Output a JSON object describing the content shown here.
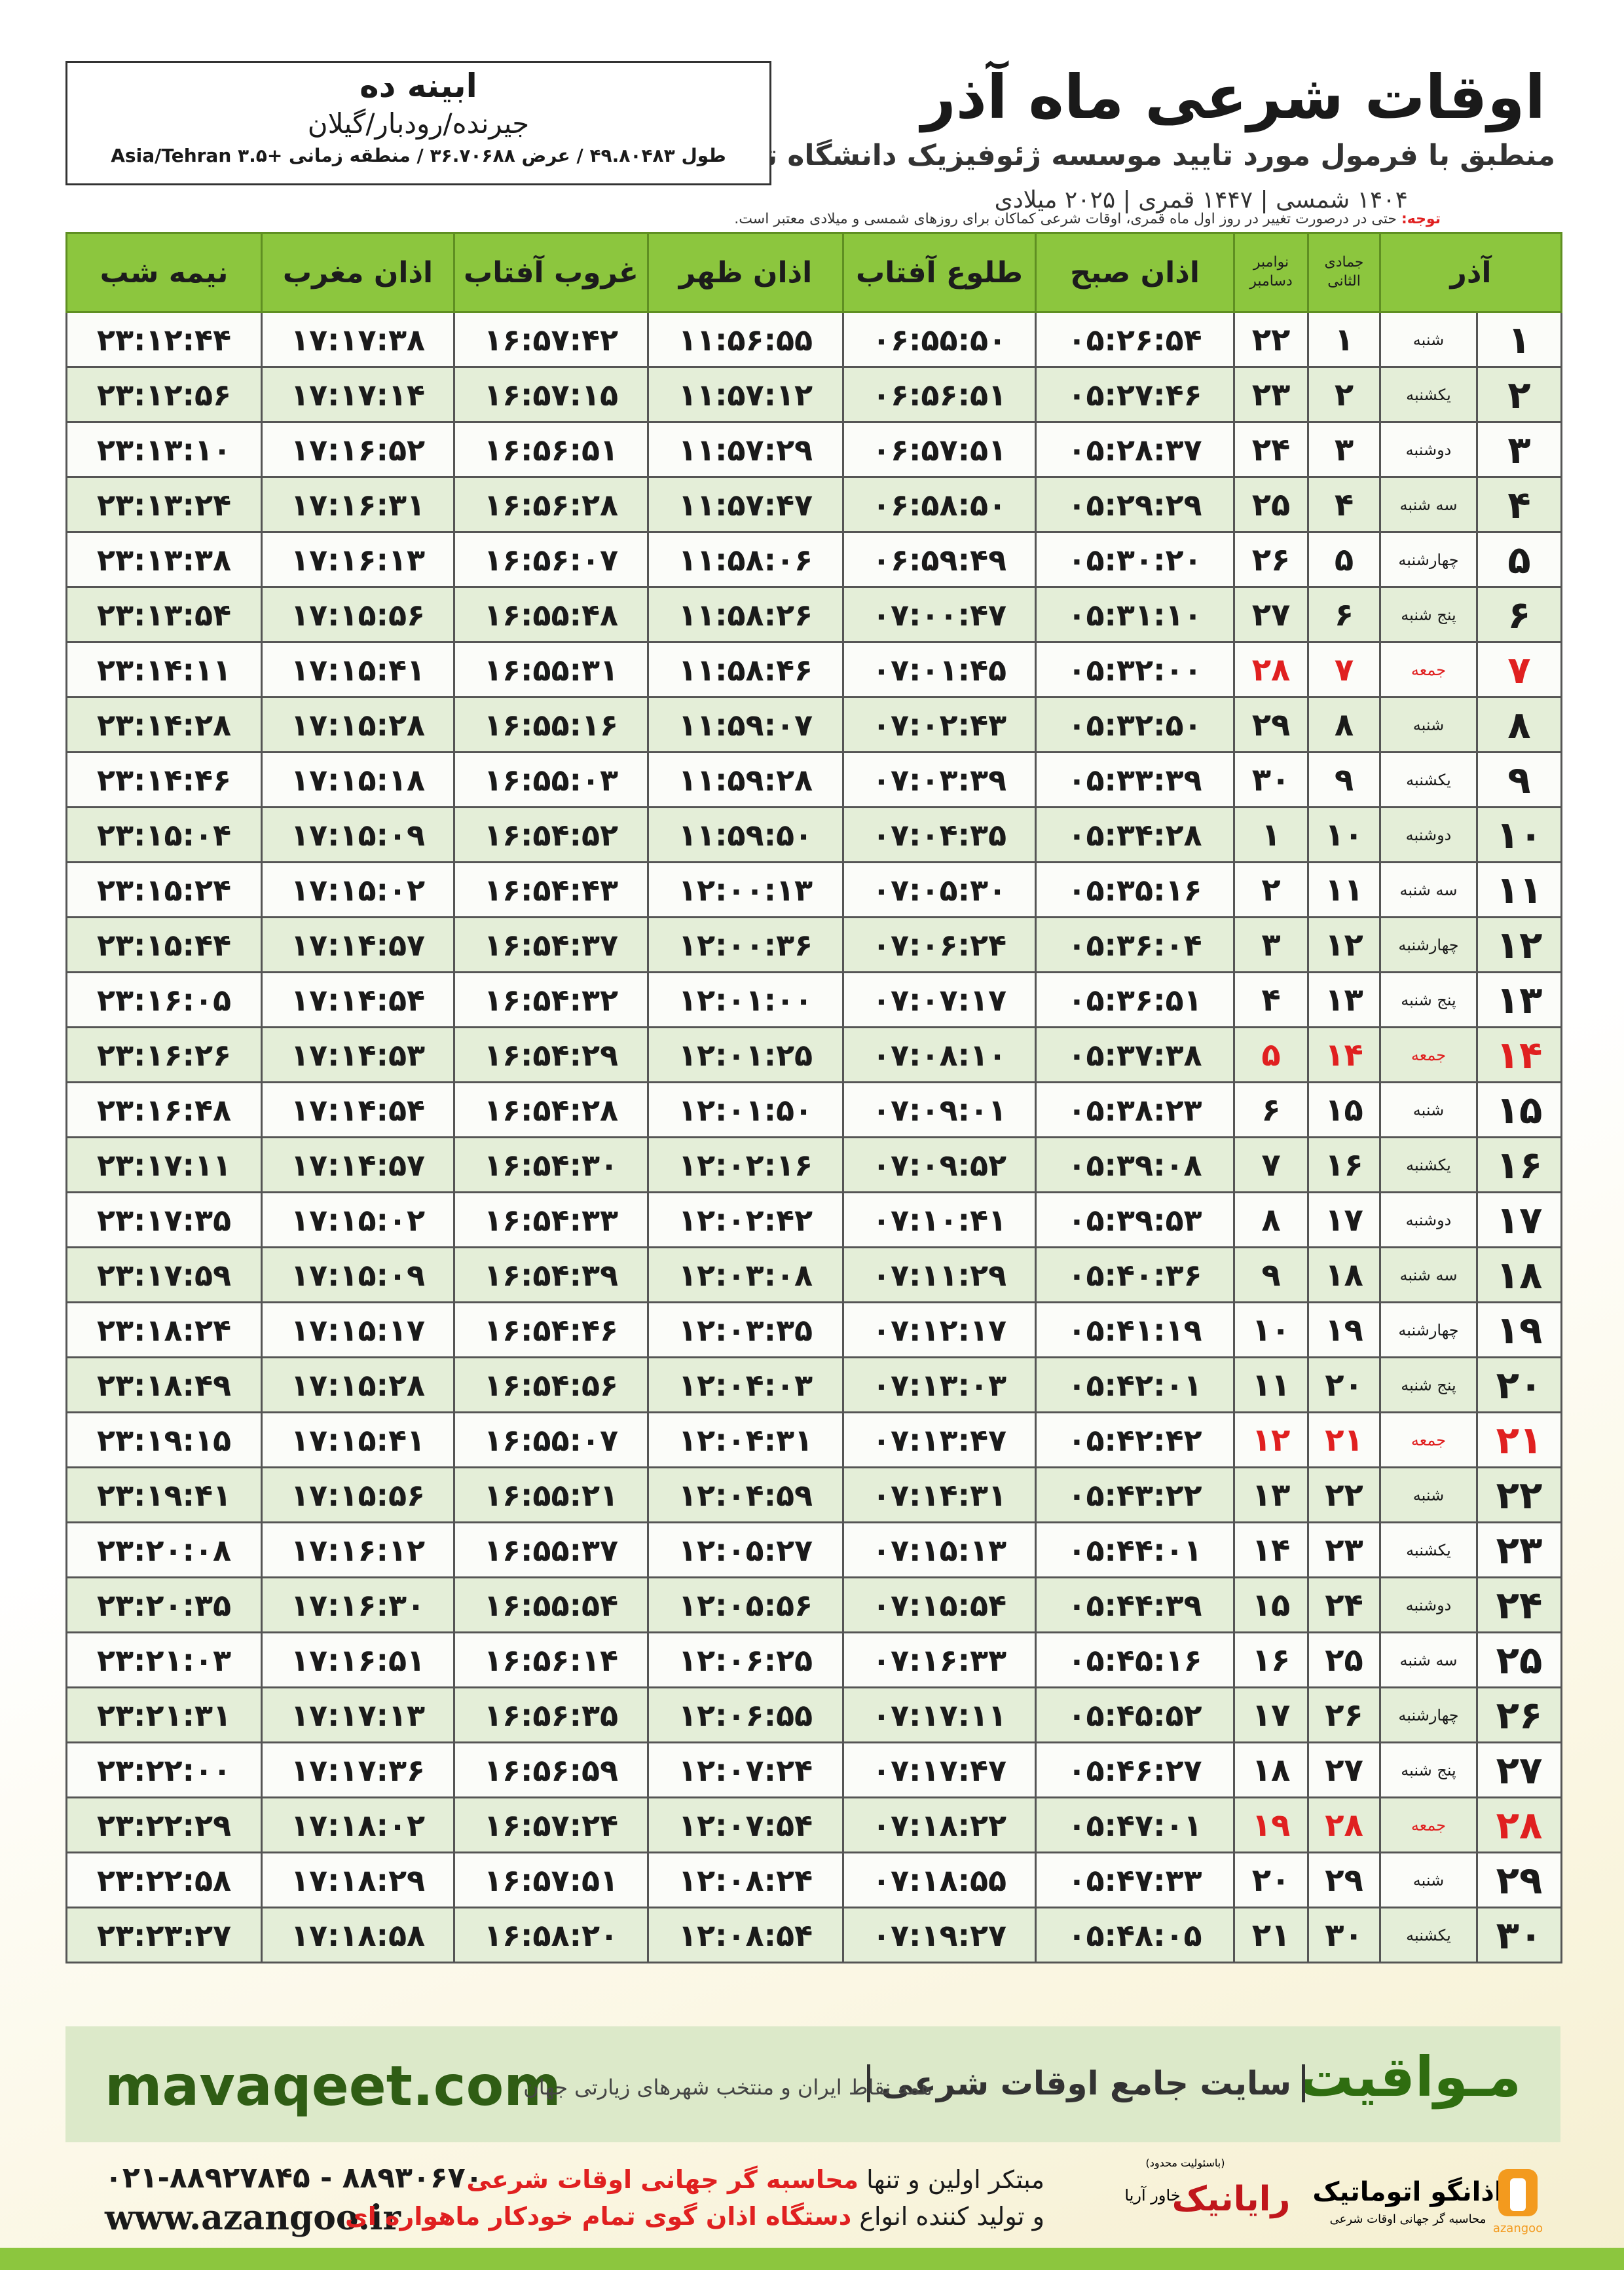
{
  "header": {
    "title": "اوقات شرعی ماه آذر",
    "subtitle": "منطبق با فرمول مورد تایید موسسه ژئوفیزیک دانشگاه تهران",
    "dates": "۱۴۰۴ شمسی | ۱۴۴۷ قمری | ۲۰۲۵ میلادی"
  },
  "location": {
    "name": "ابینه ده",
    "region": "جیرنده/رودبار/گیلان",
    "coords": "طول ۴۹.۸۰۴۸۳ / عرض ۳۶.۷۰۶۸۸ / منطقه زمانی +۳.۵ Asia/Tehran"
  },
  "note": {
    "label": "توجه:",
    "text": "حتی در درصورت تغییر در روز اول ماه قمری، اوقات شرعی کماکان برای روزهای شمسی و میلادی معتبر است."
  },
  "table": {
    "month": "آذر",
    "hijri_month": "جمادی الثانی",
    "greg_months": [
      "نوامبر",
      "دسامبر"
    ],
    "columns": [
      "اذان صبح",
      "طلوع آفتاب",
      "اذان ظهر",
      "غروب آفتاب",
      "اذان مغرب",
      "نیمه شب"
    ],
    "rows": [
      [
        "۱",
        "شنبه",
        "۱",
        "۲۲",
        "۰۵:۲۶:۵۴",
        "۰۶:۵۵:۵۰",
        "۱۱:۵۶:۵۵",
        "۱۶:۵۷:۴۲",
        "۱۷:۱۷:۳۸",
        "۲۳:۱۲:۴۴"
      ],
      [
        "۲",
        "یکشنبه",
        "۲",
        "۲۳",
        "۰۵:۲۷:۴۶",
        "۰۶:۵۶:۵۱",
        "۱۱:۵۷:۱۲",
        "۱۶:۵۷:۱۵",
        "۱۷:۱۷:۱۴",
        "۲۳:۱۲:۵۶"
      ],
      [
        "۳",
        "دوشنبه",
        "۳",
        "۲۴",
        "۰۵:۲۸:۳۷",
        "۰۶:۵۷:۵۱",
        "۱۱:۵۷:۲۹",
        "۱۶:۵۶:۵۱",
        "۱۷:۱۶:۵۲",
        "۲۳:۱۳:۱۰"
      ],
      [
        "۴",
        "سه شنبه",
        "۴",
        "۲۵",
        "۰۵:۲۹:۲۹",
        "۰۶:۵۸:۵۰",
        "۱۱:۵۷:۴۷",
        "۱۶:۵۶:۲۸",
        "۱۷:۱۶:۳۱",
        "۲۳:۱۳:۲۴"
      ],
      [
        "۵",
        "چهارشنبه",
        "۵",
        "۲۶",
        "۰۵:۳۰:۲۰",
        "۰۶:۵۹:۴۹",
        "۱۱:۵۸:۰۶",
        "۱۶:۵۶:۰۷",
        "۱۷:۱۶:۱۳",
        "۲۳:۱۳:۳۸"
      ],
      [
        "۶",
        "پنج شنبه",
        "۶",
        "۲۷",
        "۰۵:۳۱:۱۰",
        "۰۷:۰۰:۴۷",
        "۱۱:۵۸:۲۶",
        "۱۶:۵۵:۴۸",
        "۱۷:۱۵:۵۶",
        "۲۳:۱۳:۵۴"
      ],
      [
        "۷",
        "جمعه",
        "۷",
        "۲۸",
        "۰۵:۳۲:۰۰",
        "۰۷:۰۱:۴۵",
        "۱۱:۵۸:۴۶",
        "۱۶:۵۵:۳۱",
        "۱۷:۱۵:۴۱",
        "۲۳:۱۴:۱۱"
      ],
      [
        "۸",
        "شنبه",
        "۸",
        "۲۹",
        "۰۵:۳۲:۵۰",
        "۰۷:۰۲:۴۳",
        "۱۱:۵۹:۰۷",
        "۱۶:۵۵:۱۶",
        "۱۷:۱۵:۲۸",
        "۲۳:۱۴:۲۸"
      ],
      [
        "۹",
        "یکشنبه",
        "۹",
        "۳۰",
        "۰۵:۳۳:۳۹",
        "۰۷:۰۳:۳۹",
        "۱۱:۵۹:۲۸",
        "۱۶:۵۵:۰۳",
        "۱۷:۱۵:۱۸",
        "۲۳:۱۴:۴۶"
      ],
      [
        "۱۰",
        "دوشنبه",
        "۱۰",
        "۱",
        "۰۵:۳۴:۲۸",
        "۰۷:۰۴:۳۵",
        "۱۱:۵۹:۵۰",
        "۱۶:۵۴:۵۲",
        "۱۷:۱۵:۰۹",
        "۲۳:۱۵:۰۴"
      ],
      [
        "۱۱",
        "سه شنبه",
        "۱۱",
        "۲",
        "۰۵:۳۵:۱۶",
        "۰۷:۰۵:۳۰",
        "۱۲:۰۰:۱۳",
        "۱۶:۵۴:۴۳",
        "۱۷:۱۵:۰۲",
        "۲۳:۱۵:۲۴"
      ],
      [
        "۱۲",
        "چهارشنبه",
        "۱۲",
        "۳",
        "۰۵:۳۶:۰۴",
        "۰۷:۰۶:۲۴",
        "۱۲:۰۰:۳۶",
        "۱۶:۵۴:۳۷",
        "۱۷:۱۴:۵۷",
        "۲۳:۱۵:۴۴"
      ],
      [
        "۱۳",
        "پنج شنبه",
        "۱۳",
        "۴",
        "۰۵:۳۶:۵۱",
        "۰۷:۰۷:۱۷",
        "۱۲:۰۱:۰۰",
        "۱۶:۵۴:۳۲",
        "۱۷:۱۴:۵۴",
        "۲۳:۱۶:۰۵"
      ],
      [
        "۱۴",
        "جمعه",
        "۱۴",
        "۵",
        "۰۵:۳۷:۳۸",
        "۰۷:۰۸:۱۰",
        "۱۲:۰۱:۲۵",
        "۱۶:۵۴:۲۹",
        "۱۷:۱۴:۵۳",
        "۲۳:۱۶:۲۶"
      ],
      [
        "۱۵",
        "شنبه",
        "۱۵",
        "۶",
        "۰۵:۳۸:۲۳",
        "۰۷:۰۹:۰۱",
        "۱۲:۰۱:۵۰",
        "۱۶:۵۴:۲۸",
        "۱۷:۱۴:۵۴",
        "۲۳:۱۶:۴۸"
      ],
      [
        "۱۶",
        "یکشنبه",
        "۱۶",
        "۷",
        "۰۵:۳۹:۰۸",
        "۰۷:۰۹:۵۲",
        "۱۲:۰۲:۱۶",
        "۱۶:۵۴:۳۰",
        "۱۷:۱۴:۵۷",
        "۲۳:۱۷:۱۱"
      ],
      [
        "۱۷",
        "دوشنبه",
        "۱۷",
        "۸",
        "۰۵:۳۹:۵۳",
        "۰۷:۱۰:۴۱",
        "۱۲:۰۲:۴۲",
        "۱۶:۵۴:۳۳",
        "۱۷:۱۵:۰۲",
        "۲۳:۱۷:۳۵"
      ],
      [
        "۱۸",
        "سه شنبه",
        "۱۸",
        "۹",
        "۰۵:۴۰:۳۶",
        "۰۷:۱۱:۲۹",
        "۱۲:۰۳:۰۸",
        "۱۶:۵۴:۳۹",
        "۱۷:۱۵:۰۹",
        "۲۳:۱۷:۵۹"
      ],
      [
        "۱۹",
        "چهارشنبه",
        "۱۹",
        "۱۰",
        "۰۵:۴۱:۱۹",
        "۰۷:۱۲:۱۷",
        "۱۲:۰۳:۳۵",
        "۱۶:۵۴:۴۶",
        "۱۷:۱۵:۱۷",
        "۲۳:۱۸:۲۴"
      ],
      [
        "۲۰",
        "پنج شنبه",
        "۲۰",
        "۱۱",
        "۰۵:۴۲:۰۱",
        "۰۷:۱۳:۰۳",
        "۱۲:۰۴:۰۳",
        "۱۶:۵۴:۵۶",
        "۱۷:۱۵:۲۸",
        "۲۳:۱۸:۴۹"
      ],
      [
        "۲۱",
        "جمعه",
        "۲۱",
        "۱۲",
        "۰۵:۴۲:۴۲",
        "۰۷:۱۳:۴۷",
        "۱۲:۰۴:۳۱",
        "۱۶:۵۵:۰۷",
        "۱۷:۱۵:۴۱",
        "۲۳:۱۹:۱۵"
      ],
      [
        "۲۲",
        "شنبه",
        "۲۲",
        "۱۳",
        "۰۵:۴۳:۲۲",
        "۰۷:۱۴:۳۱",
        "۱۲:۰۴:۵۹",
        "۱۶:۵۵:۲۱",
        "۱۷:۱۵:۵۶",
        "۲۳:۱۹:۴۱"
      ],
      [
        "۲۳",
        "یکشنبه",
        "۲۳",
        "۱۴",
        "۰۵:۴۴:۰۱",
        "۰۷:۱۵:۱۳",
        "۱۲:۰۵:۲۷",
        "۱۶:۵۵:۳۷",
        "۱۷:۱۶:۱۲",
        "۲۳:۲۰:۰۸"
      ],
      [
        "۲۴",
        "دوشنبه",
        "۲۴",
        "۱۵",
        "۰۵:۴۴:۳۹",
        "۰۷:۱۵:۵۴",
        "۱۲:۰۵:۵۶",
        "۱۶:۵۵:۵۴",
        "۱۷:۱۶:۳۰",
        "۲۳:۲۰:۳۵"
      ],
      [
        "۲۵",
        "سه شنبه",
        "۲۵",
        "۱۶",
        "۰۵:۴۵:۱۶",
        "۰۷:۱۶:۳۳",
        "۱۲:۰۶:۲۵",
        "۱۶:۵۶:۱۴",
        "۱۷:۱۶:۵۱",
        "۲۳:۲۱:۰۳"
      ],
      [
        "۲۶",
        "چهارشنبه",
        "۲۶",
        "۱۷",
        "۰۵:۴۵:۵۲",
        "۰۷:۱۷:۱۱",
        "۱۲:۰۶:۵۵",
        "۱۶:۵۶:۳۵",
        "۱۷:۱۷:۱۳",
        "۲۳:۲۱:۳۱"
      ],
      [
        "۲۷",
        "پنج شنبه",
        "۲۷",
        "۱۸",
        "۰۵:۴۶:۲۷",
        "۰۷:۱۷:۴۷",
        "۱۲:۰۷:۲۴",
        "۱۶:۵۶:۵۹",
        "۱۷:۱۷:۳۶",
        "۲۳:۲۲:۰۰"
      ],
      [
        "۲۸",
        "جمعه",
        "۲۸",
        "۱۹",
        "۰۵:۴۷:۰۱",
        "۰۷:۱۸:۲۲",
        "۱۲:۰۷:۵۴",
        "۱۶:۵۷:۲۴",
        "۱۷:۱۸:۰۲",
        "۲۳:۲۲:۲۹"
      ],
      [
        "۲۹",
        "شنبه",
        "۲۹",
        "۲۰",
        "۰۵:۴۷:۳۳",
        "۰۷:۱۸:۵۵",
        "۱۲:۰۸:۲۴",
        "۱۶:۵۷:۵۱",
        "۱۷:۱۸:۲۹",
        "۲۳:۲۲:۵۸"
      ],
      [
        "۳۰",
        "یکشنبه",
        "۳۰",
        "۲۱",
        "۰۵:۴۸:۰۵",
        "۰۷:۱۹:۲۷",
        "۱۲:۰۸:۵۴",
        "۱۶:۵۸:۲۰",
        "۱۷:۱۸:۵۸",
        "۲۳:۲۳:۲۷"
      ]
    ]
  },
  "banner": {
    "url": "mavaqeet.com",
    "brand": "مـواقیت",
    "tagline": "سایت جامع اوقات شرعی",
    "subline": "همه نقاط ایران و منتخب شهرهای زیارتی جهان"
  },
  "footer": {
    "phone": "۰۲۱-۸۸۹۲۷۸۴۵ - ۸۸۹۳۰۶۷۰",
    "site": "www.azangoo.ir",
    "line1_a": "مبتکر اولین و تنها",
    "line1_b": "محاسبه گر جهانی اوقات شرعی",
    "line2_a": "و تولید کننده انواع",
    "line2_b": "دستگاه اذان گوی تمام خودکار ماهواره ای",
    "logo1_note": "(باسئولیت محدود)",
    "logo1_sub": "خاور آریا",
    "logo1": "رایانیک",
    "logo2": "اذانگو اتوماتیک",
    "logo2_sub": "محاسبه گر جهانی اوقات شرعی",
    "logo2_en": "azangoo"
  }
}
